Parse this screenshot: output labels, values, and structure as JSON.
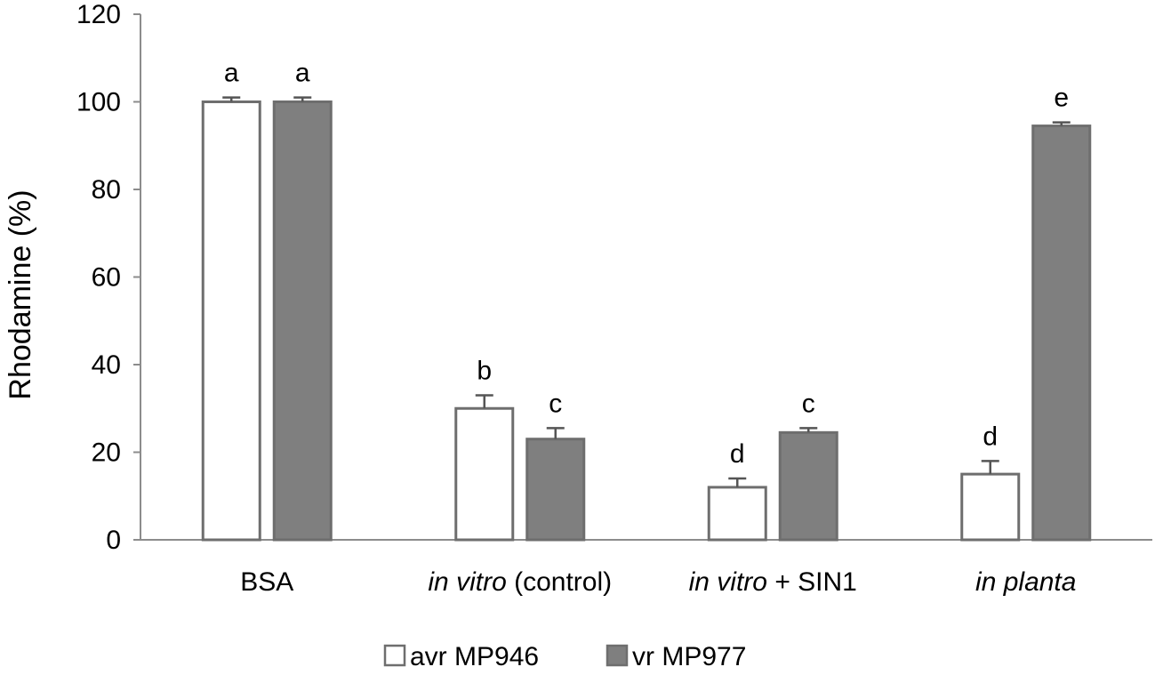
{
  "chart_data": {
    "type": "bar",
    "ylabel": "Rhodamine (%)",
    "ylim": [
      0,
      120
    ],
    "yticks": [
      "0",
      "20",
      "40",
      "60",
      "80",
      "100",
      "120"
    ],
    "categories": [
      {
        "parts": [
          {
            "text": "BSA",
            "italic": false
          }
        ]
      },
      {
        "parts": [
          {
            "text": "in vitro",
            "italic": true
          },
          {
            "text": " (control)",
            "italic": false
          }
        ]
      },
      {
        "parts": [
          {
            "text": "in vitro",
            "italic": true
          },
          {
            "text": " + SIN1",
            "italic": false
          }
        ]
      },
      {
        "parts": [
          {
            "text": "in planta",
            "italic": true
          }
        ]
      }
    ],
    "series": [
      {
        "name": "avr MP946",
        "fill": "#ffffff",
        "stroke": "#6e6e6e",
        "values": [
          100,
          30,
          12,
          15
        ],
        "errors": [
          1,
          3,
          2,
          3
        ],
        "labels": [
          "a",
          "b",
          "d",
          "d"
        ]
      },
      {
        "name": "vr MP977",
        "fill": "#7f7f7f",
        "stroke": "#6e6e6e",
        "values": [
          100,
          23,
          24.5,
          94.5
        ],
        "errors": [
          1,
          2.5,
          1,
          0.8
        ],
        "labels": [
          "a",
          "c",
          "c",
          "e"
        ]
      }
    ],
    "legend_position": "bottom-center",
    "grid": false,
    "colors": {
      "axis": "#8c8c8c",
      "text": "#000000"
    }
  }
}
